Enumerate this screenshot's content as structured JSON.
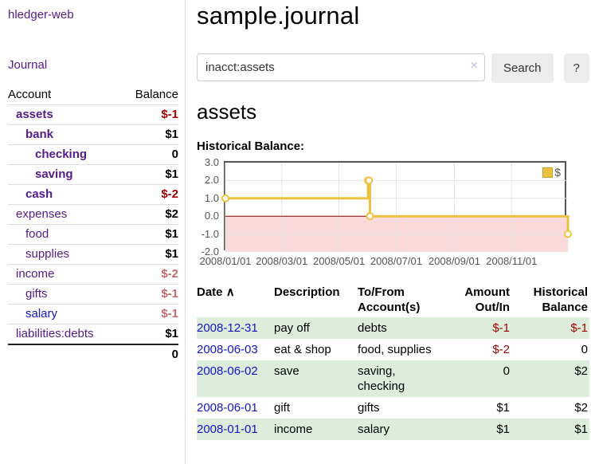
{
  "theme": {
    "link_purple": "#551a8b",
    "link_blue": "#1414cc",
    "neg_strong": "#a40000",
    "neg_muted": "#c46a6a",
    "row_green": "#dceddc",
    "chart_gold": "#edc240",
    "chart_gold_dark": "#c7a22b",
    "chart_pink": "#f9d9d9",
    "chart_zero": "#8b0000",
    "chart_border": "#545454",
    "chart_grid": "#e4e4e4",
    "btn_bg": "#ececec",
    "border_gray": "#dddddd",
    "axis_text": "#545454"
  },
  "icons": {
    "sort_ascending": "∧",
    "clear": "×"
  },
  "sidebar": {
    "app_title": "hledger-web",
    "journal_link": "Journal",
    "accounts": {
      "account_header": "Account",
      "balance_header": "Balance",
      "rows": [
        {
          "name": "assets",
          "balance": "$-1",
          "level": 1,
          "bold": true,
          "link": "purple",
          "balance_style": "neg"
        },
        {
          "name": "bank",
          "balance": "$1",
          "level": 2,
          "bold": true,
          "link": "purple",
          "balance_style": "pos"
        },
        {
          "name": "checking",
          "balance": "0",
          "level": 3,
          "bold": true,
          "link": "purple",
          "balance_style": "pos"
        },
        {
          "name": "saving",
          "balance": "$1",
          "level": 3,
          "bold": true,
          "link": "purple",
          "balance_style": "pos"
        },
        {
          "name": "cash",
          "balance": "$-2",
          "level": 2,
          "bold": true,
          "link": "purple",
          "balance_style": "neg"
        },
        {
          "name": "expenses",
          "balance": "$2",
          "level": 1,
          "bold": false,
          "link": "purple",
          "balance_style": "pos"
        },
        {
          "name": "food",
          "balance": "$1",
          "level": 2,
          "bold": false,
          "link": "purple",
          "balance_style": "pos"
        },
        {
          "name": "supplies",
          "balance": "$1",
          "level": 2,
          "bold": false,
          "link": "purple",
          "balance_style": "pos"
        },
        {
          "name": "income",
          "balance": "$-2",
          "level": 1,
          "bold": false,
          "link": "purple",
          "balance_style": "negmuted"
        },
        {
          "name": "gifts",
          "balance": "$-1",
          "level": 2,
          "bold": false,
          "link": "purple",
          "balance_style": "negmuted"
        },
        {
          "name": "salary",
          "balance": "$-1",
          "level": 2,
          "bold": false,
          "link": "blue",
          "balance_style": "negmuted"
        },
        {
          "name": "liabilities:debts",
          "balance": "$1",
          "level": 1,
          "bold": false,
          "link": "purple",
          "balance_style": "pos"
        }
      ],
      "total": "0"
    }
  },
  "main": {
    "page_title": "sample.journal",
    "search": {
      "value": "inacct:assets",
      "button": "Search",
      "help": "?"
    },
    "account_heading": "assets",
    "chart_heading": "Historical Balance:",
    "register": {
      "headers": {
        "date": "Date",
        "description": "Description",
        "accounts": "To/From Account(s)",
        "amount": "Amount Out/In",
        "balance": "Historical Balance"
      },
      "rows": [
        {
          "date": "2008-12-31",
          "description": "pay off",
          "accounts": "debts",
          "amount": "$-1",
          "amount_neg": true,
          "balance": "$-1",
          "balance_neg": true,
          "highlight": true
        },
        {
          "date": "2008-06-03",
          "description": "eat & shop",
          "accounts": "food, supplies",
          "amount": "$-2",
          "amount_neg": true,
          "balance": "0",
          "balance_neg": false,
          "highlight": false
        },
        {
          "date": "2008-06-02",
          "description": "save",
          "accounts": "saving, checking",
          "amount": "0",
          "amount_neg": false,
          "balance": "$2",
          "balance_neg": false,
          "highlight": true
        },
        {
          "date": "2008-06-01",
          "description": "gift",
          "accounts": "gifts",
          "amount": "$1",
          "amount_neg": false,
          "balance": "$2",
          "balance_neg": false,
          "highlight": false
        },
        {
          "date": "2008-01-01",
          "description": "income",
          "accounts": "salary",
          "amount": "$1",
          "amount_neg": false,
          "balance": "$1",
          "balance_neg": false,
          "highlight": true
        }
      ]
    }
  },
  "chart_data": {
    "type": "line",
    "step": true,
    "title": "Historical Balance:",
    "x_domain": [
      "2008-01-01",
      "2008-12-31"
    ],
    "ylim": [
      -2,
      3
    ],
    "y_ticks": [
      3.0,
      2.0,
      1.0,
      0.0,
      -1.0,
      -2.0
    ],
    "x_ticks": [
      "2008/01/01",
      "2008/03/01",
      "2008/05/01",
      "2008/07/01",
      "2008/09/01",
      "2008/11/01"
    ],
    "series": [
      {
        "name": "$",
        "color": "#edc240",
        "points": [
          [
            "2008-01-01",
            1
          ],
          [
            "2008-06-01",
            2
          ],
          [
            "2008-06-02",
            2
          ],
          [
            "2008-06-03",
            0
          ],
          [
            "2008-12-31",
            -1
          ]
        ]
      }
    ],
    "legend_position": "top-right",
    "grid": true,
    "negative_region": true
  }
}
